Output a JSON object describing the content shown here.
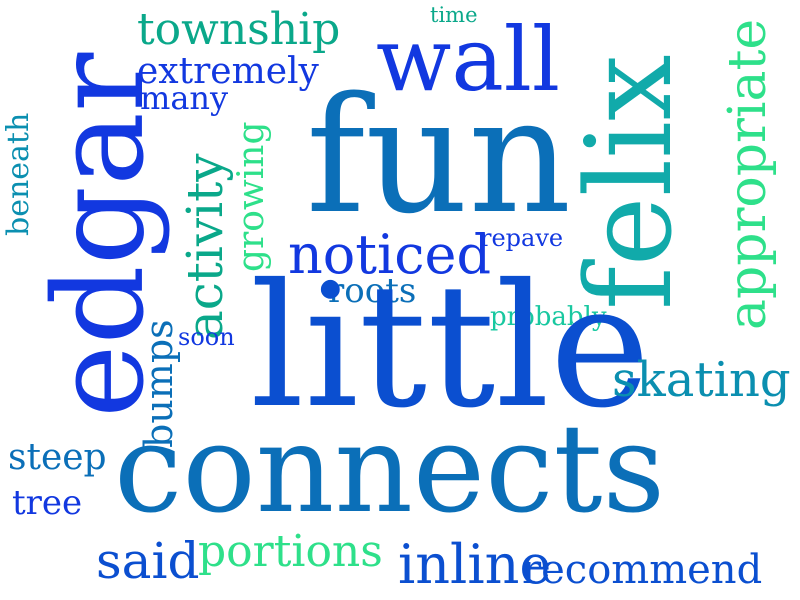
{
  "words": [
    {
      "text": "time",
      "color": "#0aa88a"
    },
    {
      "text": "township",
      "color": "#0aa88a"
    },
    {
      "text": "wall",
      "color": "#1238e0"
    },
    {
      "text": "extremely",
      "color": "#1238e0"
    },
    {
      "text": "many",
      "color": "#1238e0"
    },
    {
      "text": "fun",
      "color": "#0b6fb8"
    },
    {
      "text": "felix",
      "color": "#11aaaa"
    },
    {
      "text": "appropriate",
      "color": "#2ee08a"
    },
    {
      "text": "edgar",
      "color": "#1238e0"
    },
    {
      "text": "beneath",
      "color": "#0b8fb0"
    },
    {
      "text": "activity",
      "color": "#0aa88a"
    },
    {
      "text": "growing",
      "color": "#2ee08a"
    },
    {
      "text": "noticed",
      "color": "#1238e0"
    },
    {
      "text": "repave",
      "color": "#1238e0"
    },
    {
      "text": "roots",
      "color": "#0b6fb8"
    },
    {
      "text": "probably",
      "color": "#18c8a0"
    },
    {
      "text": "bumps",
      "color": "#0b6fb8"
    },
    {
      "text": "soon",
      "color": "#1238e0"
    },
    {
      "text": "little",
      "color": "#0b4fd0"
    },
    {
      "text": "skating",
      "color": "#0b8fb0"
    },
    {
      "text": "steep",
      "color": "#0b6fb8"
    },
    {
      "text": "tree",
      "color": "#1238e0"
    },
    {
      "text": "connects",
      "color": "#0b6fb8"
    },
    {
      "text": "said",
      "color": "#0b4fd0"
    },
    {
      "text": "portions",
      "color": "#2ee08a"
    },
    {
      "text": "inline",
      "color": "#0b4fd0"
    },
    {
      "text": "recommend",
      "color": "#0b4fd0"
    }
  ]
}
